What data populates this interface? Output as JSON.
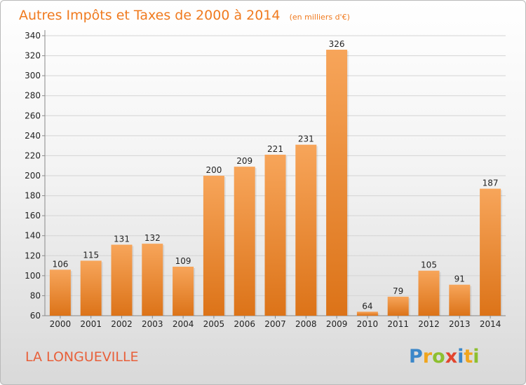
{
  "chart_data": {
    "type": "bar",
    "title": "Autres Impôts et Taxes de 2000 à 2014",
    "subtitle": "(en milliers d'€)",
    "categories": [
      "2000",
      "2001",
      "2002",
      "2003",
      "2004",
      "2005",
      "2006",
      "2007",
      "2008",
      "2009",
      "2010",
      "2011",
      "2012",
      "2013",
      "2014"
    ],
    "values": [
      106,
      115,
      131,
      132,
      109,
      200,
      209,
      221,
      231,
      326,
      64,
      79,
      105,
      91,
      187
    ],
    "xlabel": "",
    "ylabel": "",
    "ylim": [
      60,
      340
    ],
    "yticks": [
      60,
      80,
      100,
      120,
      140,
      160,
      180,
      200,
      220,
      240,
      260,
      280,
      300,
      320,
      340
    ],
    "grid": true,
    "legend": "none",
    "bar_color_top": "#f7a55a",
    "bar_color_bottom": "#dc7318"
  },
  "footer": {
    "commune": "LA LONGUEVILLE",
    "brand_letters": [
      {
        "ch": "P",
        "color": "#3b87c9"
      },
      {
        "ch": "r",
        "color": "#f0a51e"
      },
      {
        "ch": "o",
        "color": "#8dbf2f"
      },
      {
        "ch": "x",
        "color": "#e2452e"
      },
      {
        "ch": "i",
        "color": "#3b87c9"
      },
      {
        "ch": "t",
        "color": "#f0a51e"
      },
      {
        "ch": "i",
        "color": "#8dbf2f"
      }
    ]
  },
  "colors": {
    "title": "#f07a1e",
    "commune": "#e8603a"
  }
}
